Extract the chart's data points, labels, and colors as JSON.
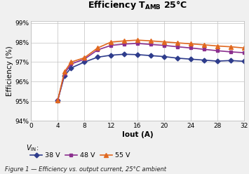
{
  "title_main": "Efficiency T",
  "title_sub": "AMB",
  "title_after": " 25°C",
  "xlabel": "Iout (A)",
  "ylabel": "Efficiency (%)",
  "figcaption": "Figure 1 — Efficiency vs. output current, 25°C ambient",
  "xlim": [
    0,
    32
  ],
  "ylim": [
    0.94,
    0.991
  ],
  "xticks": [
    0,
    4,
    8,
    12,
    16,
    20,
    24,
    28,
    32
  ],
  "yticks": [
    0.94,
    0.95,
    0.96,
    0.97,
    0.98,
    0.99
  ],
  "ytick_labels": [
    "94%",
    "95%",
    "96%",
    "97%",
    "98%",
    "99%"
  ],
  "series": [
    {
      "label": "38 V",
      "color": "#2e3c8c",
      "marker": "D",
      "markersize": 3.5,
      "linewidth": 1.2,
      "x": [
        4,
        5,
        6,
        8,
        10,
        12,
        14,
        16,
        18,
        20,
        22,
        24,
        26,
        28,
        30,
        32
      ],
      "y": [
        0.9505,
        0.963,
        0.967,
        0.97,
        0.9725,
        0.9735,
        0.974,
        0.9738,
        0.9733,
        0.9728,
        0.972,
        0.9715,
        0.971,
        0.9705,
        0.9708,
        0.9704
      ]
    },
    {
      "label": "48 V",
      "color": "#8b2f8e",
      "marker": "s",
      "markersize": 3.5,
      "linewidth": 1.2,
      "x": [
        4,
        5,
        6,
        8,
        10,
        12,
        14,
        16,
        18,
        20,
        22,
        24,
        26,
        28,
        30,
        32
      ],
      "y": [
        0.9505,
        0.964,
        0.969,
        0.9715,
        0.9762,
        0.9785,
        0.9792,
        0.9795,
        0.979,
        0.9785,
        0.9778,
        0.9772,
        0.9765,
        0.9758,
        0.9752,
        0.9748
      ]
    },
    {
      "label": "55 V",
      "color": "#e06820",
      "marker": "^",
      "markersize": 4,
      "linewidth": 1.2,
      "x": [
        4,
        5,
        6,
        8,
        10,
        12,
        14,
        16,
        18,
        20,
        22,
        24,
        26,
        28,
        30,
        32
      ],
      "y": [
        0.9505,
        0.965,
        0.97,
        0.9722,
        0.9772,
        0.9802,
        0.9808,
        0.9812,
        0.9808,
        0.9803,
        0.9798,
        0.9793,
        0.9788,
        0.9782,
        0.9778,
        0.9772
      ]
    }
  ],
  "background_color": "#f0f0f0",
  "plot_bg": "#ffffff",
  "grid_color": "#c0c0c0",
  "border_color": "#5b9bd5"
}
